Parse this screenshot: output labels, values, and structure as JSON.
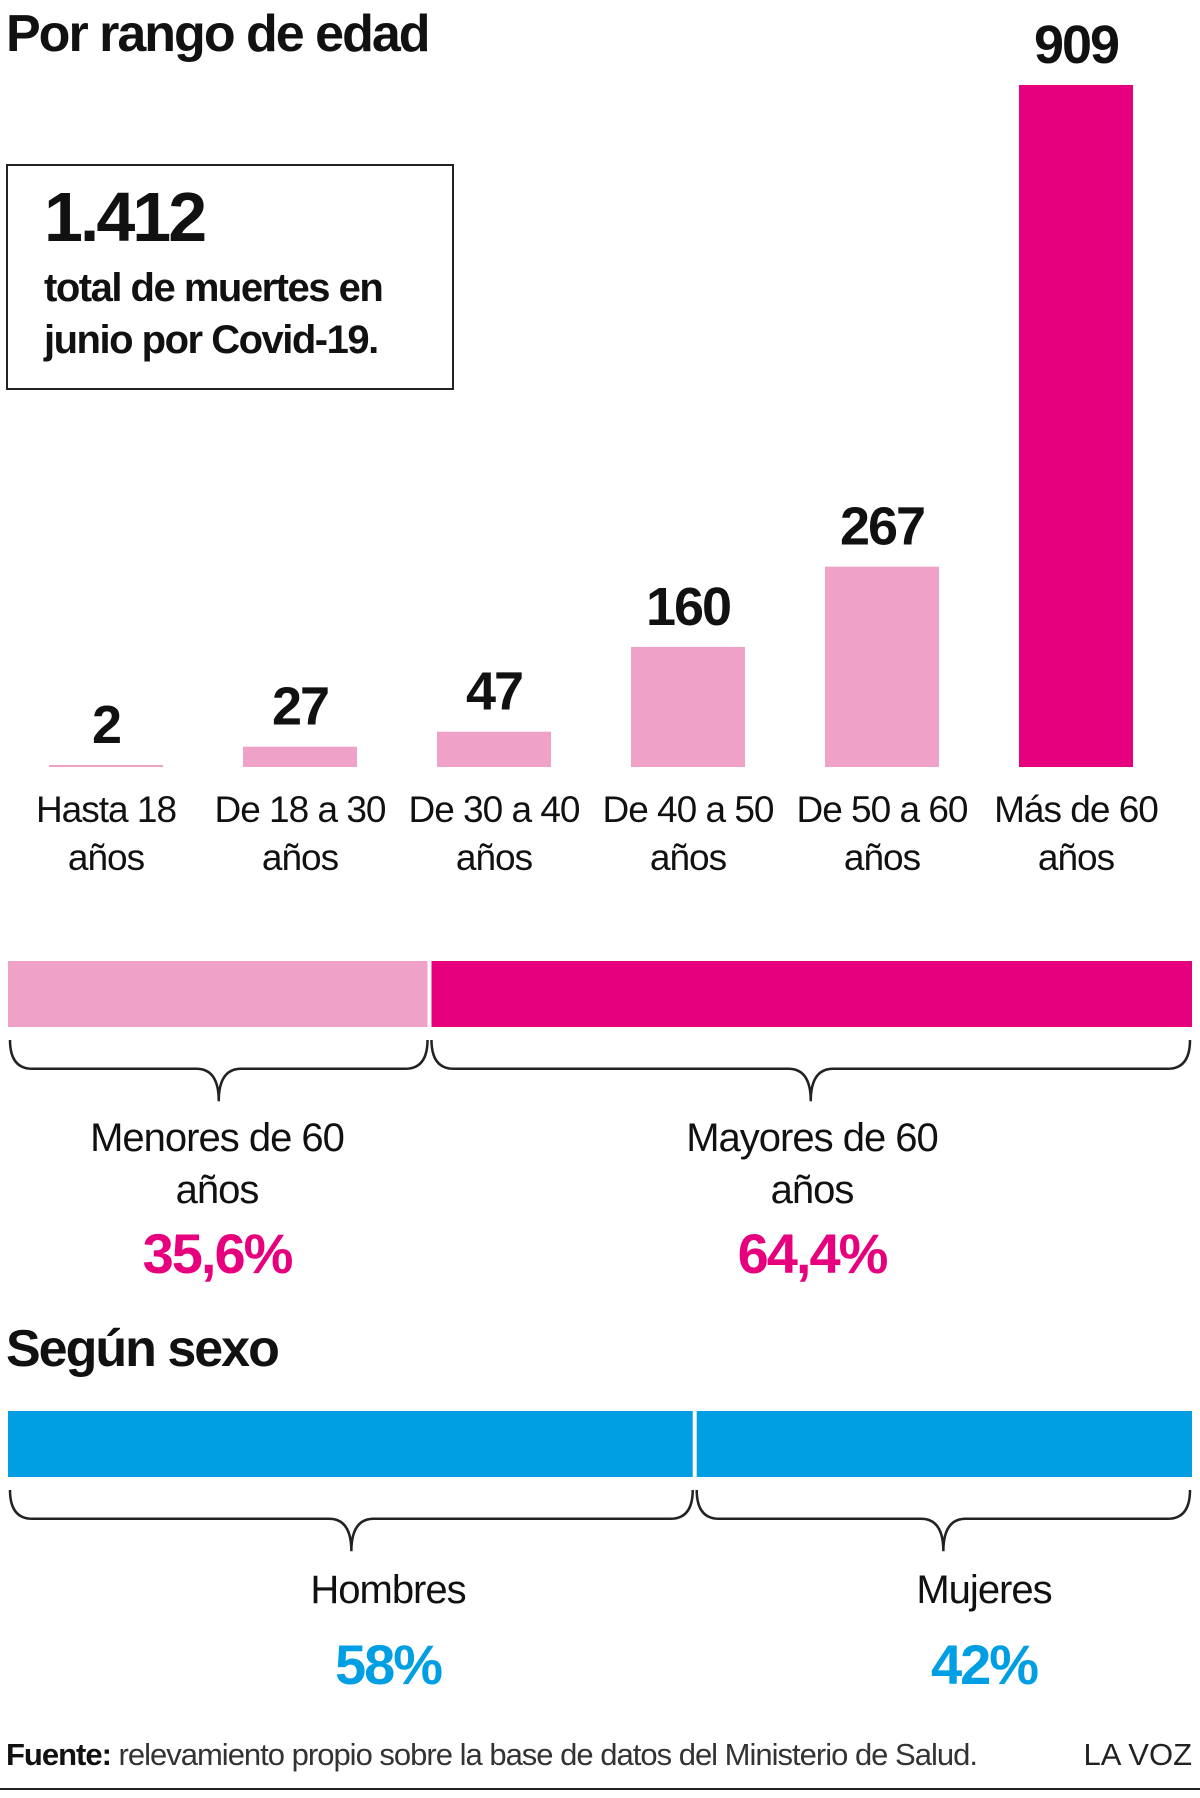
{
  "colors": {
    "light_pink": "#f0a1c7",
    "magenta": "#e6007e",
    "blue": "#009fe3"
  },
  "age": {
    "title": "Por rango de edad",
    "total_number": "1.412",
    "total_caption": "total de muertes en junio por Covid-19.",
    "groups": [
      {
        "label": "Menores de 60 años",
        "pct": "35,6%"
      },
      {
        "label": "Mayores de 60 años",
        "pct": "64,4%"
      }
    ]
  },
  "sex": {
    "title": "Según sexo",
    "groups": [
      {
        "label": "Hombres",
        "pct": "58%"
      },
      {
        "label": "Mujeres",
        "pct": "42%"
      }
    ]
  },
  "footer": {
    "source_prefix": "Fuente:",
    "source_text": " relevamiento propio sobre la base de datos del Ministerio de Salud.",
    "brand": "LA VOZ"
  },
  "chart_data": [
    {
      "type": "bar",
      "title": "Por rango de edad",
      "categories": [
        "Hasta 18 años",
        "De 18 a 30 años",
        "De 30 a 40 años",
        "De 40 a 50 años",
        "De 50 a 60 años",
        "Más de 60 años"
      ],
      "values": [
        2,
        27,
        47,
        160,
        267,
        909
      ],
      "data_labels": [
        "2",
        "27",
        "47",
        "160",
        "267",
        "909"
      ],
      "colors": [
        "#f0a1c7",
        "#f0a1c7",
        "#f0a1c7",
        "#f0a1c7",
        "#f0a1c7",
        "#e6007e"
      ],
      "ylim": [
        0,
        909
      ],
      "grid": false
    },
    {
      "type": "bar",
      "stacked": true,
      "orientation": "horizontal",
      "categories": [
        "Menores de 60 años",
        "Mayores de 60 años"
      ],
      "values": [
        35.6,
        64.4
      ],
      "colors": [
        "#f0a1c7",
        "#e6007e"
      ]
    },
    {
      "type": "bar",
      "stacked": true,
      "orientation": "horizontal",
      "title": "Según sexo",
      "categories": [
        "Hombres",
        "Mujeres"
      ],
      "values": [
        58,
        42
      ],
      "colors": [
        "#009fe3",
        "#009fe3"
      ]
    }
  ]
}
